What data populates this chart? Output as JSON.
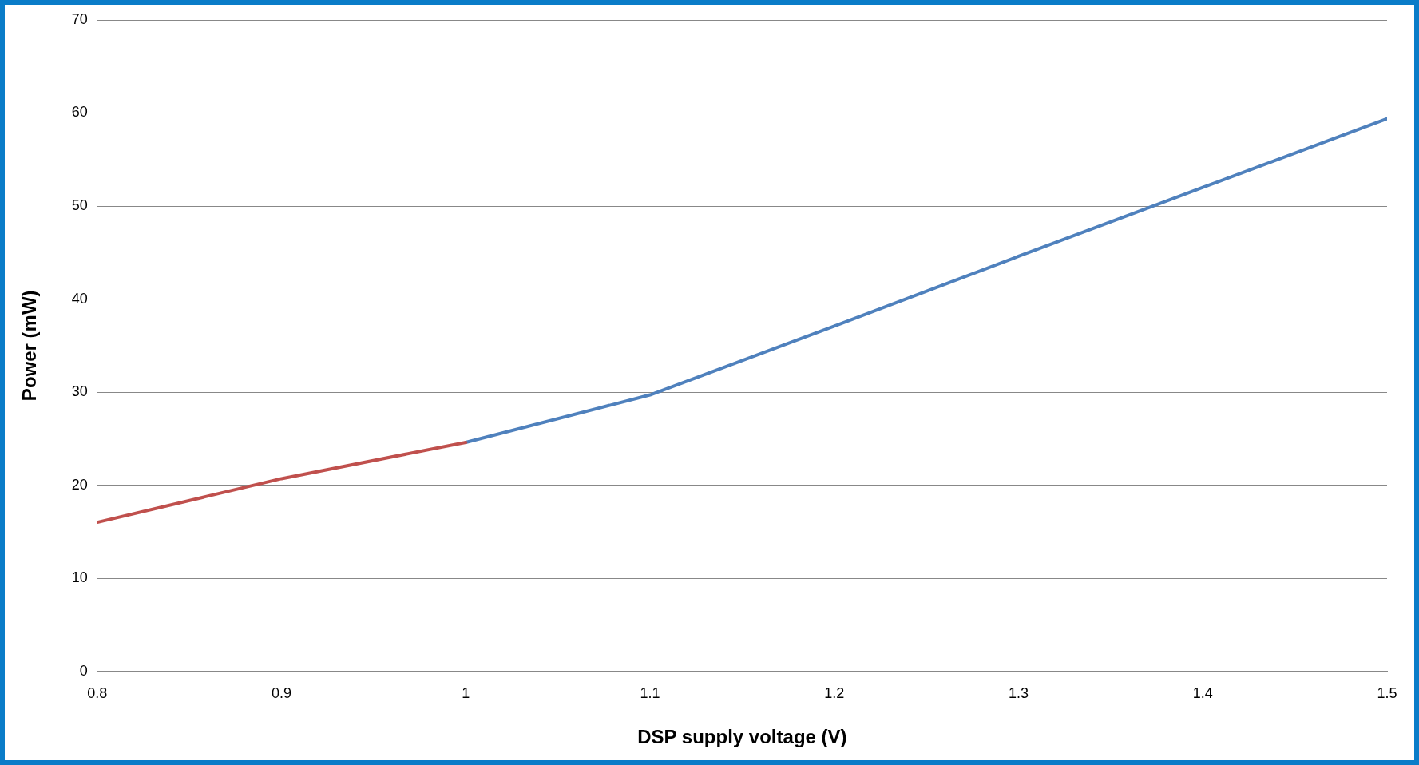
{
  "chart_data": {
    "type": "line",
    "xlabel": "DSP supply voltage (V)",
    "ylabel": "Power (mW)",
    "xlim": [
      0.8,
      1.5
    ],
    "xticks": [
      0.8,
      0.9,
      1,
      1.1,
      1.2,
      1.3,
      1.4,
      1.5
    ],
    "ylim": [
      0,
      70
    ],
    "yticks": [
      0,
      10,
      20,
      30,
      40,
      50,
      60,
      70
    ],
    "grid": "y",
    "legend": false,
    "marker": "none",
    "line_style": "solid",
    "series": [
      {
        "color": "#c0504d",
        "x": [
          0.8,
          0.9,
          1.0
        ],
        "values": [
          16,
          20.7,
          24.6
        ]
      },
      {
        "color": "#4f81bd",
        "x": [
          1.0,
          1.1,
          1.2,
          1.3,
          1.4,
          1.5
        ],
        "values": [
          24.6,
          29.7,
          37.1,
          44.6,
          52.0,
          59.4
        ]
      }
    ]
  }
}
